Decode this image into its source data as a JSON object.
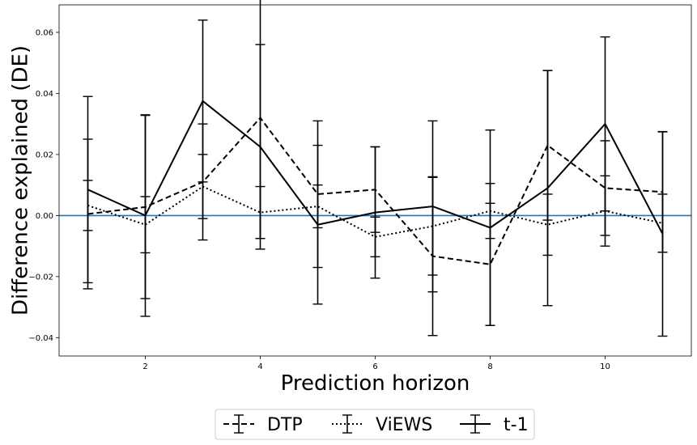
{
  "chart_data": {
    "type": "line",
    "xlabel": "Prediction horizon",
    "ylabel": "Difference explained (DE)",
    "xlim": [
      0.5,
      11.5
    ],
    "ylim": [
      -0.046,
      0.069
    ],
    "x_ticks": [
      2,
      4,
      6,
      8,
      10
    ],
    "x_tick_labels": [
      "2",
      "4",
      "6",
      "8",
      "10"
    ],
    "y_ticks": [
      -0.04,
      -0.02,
      0.0,
      0.02,
      0.04,
      0.06
    ],
    "y_tick_labels": [
      "−0.04",
      "−0.02",
      "0.00",
      "0.02",
      "0.04",
      "0.06"
    ],
    "grid": false,
    "reference_line": {
      "y": 0.0,
      "color": "#1f77b4"
    },
    "legend_position": "bottom-center-outside",
    "x": [
      1,
      2,
      3,
      4,
      5,
      6,
      7,
      8,
      9,
      10,
      11
    ],
    "series": [
      {
        "name": "DTP",
        "linestyle": "dashed",
        "color": "#000000",
        "values": [
          0.0005,
          0.0028,
          0.011,
          0.032,
          0.007,
          0.0085,
          -0.0133,
          -0.016,
          0.023,
          0.009,
          0.0077
        ],
        "errors": [
          0.0245,
          0.03,
          0.019,
          0.0395,
          0.024,
          0.014,
          0.026,
          0.02,
          0.0245,
          0.0155,
          0.0197
        ]
      },
      {
        "name": "ViEWS",
        "linestyle": "dotted",
        "color": "#000000",
        "values": [
          0.0033,
          -0.003,
          0.0095,
          0.001,
          0.003,
          -0.007,
          -0.0035,
          0.0015,
          -0.003,
          0.0015,
          -0.0025
        ],
        "errors": [
          0.0082,
          0.0092,
          0.0105,
          0.0085,
          0.007,
          0.0065,
          0.016,
          0.009,
          0.01,
          0.0115,
          0.0095
        ]
      },
      {
        "name": "t-1",
        "linestyle": "solid",
        "color": "#000000",
        "values": [
          0.0085,
          0.0,
          0.0375,
          0.0225,
          -0.003,
          0.001,
          0.003,
          -0.004,
          0.009,
          0.03,
          -0.006
        ],
        "errors": [
          0.0305,
          0.033,
          0.0265,
          0.0335,
          0.026,
          0.0215,
          0.028,
          0.032,
          0.0385,
          0.0285,
          0.0335
        ]
      }
    ]
  }
}
